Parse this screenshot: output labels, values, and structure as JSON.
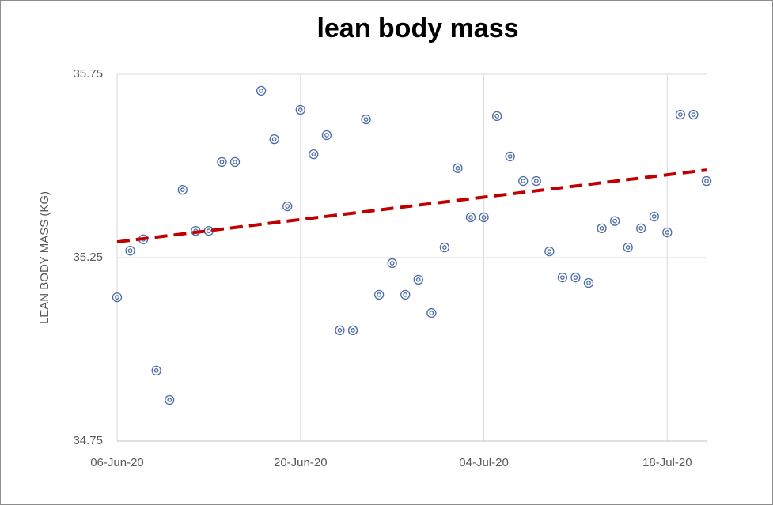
{
  "chart_data": {
    "type": "scatter",
    "title": "lean body mass",
    "y_label": "LEAN BODY MASS (KG)",
    "x": [
      "2020-06-06",
      "2020-06-07",
      "2020-06-08",
      "2020-06-09",
      "2020-06-10",
      "2020-06-11",
      "2020-06-12",
      "2020-06-13",
      "2020-06-14",
      "2020-06-15",
      "2020-06-17",
      "2020-06-18",
      "2020-06-19",
      "2020-06-20",
      "2020-06-21",
      "2020-06-22",
      "2020-06-23",
      "2020-06-24",
      "2020-06-25",
      "2020-06-26",
      "2020-06-27",
      "2020-06-28",
      "2020-06-29",
      "2020-06-30",
      "2020-07-01",
      "2020-07-02",
      "2020-07-03",
      "2020-07-04",
      "2020-07-05",
      "2020-07-06",
      "2020-07-07",
      "2020-07-08",
      "2020-07-09",
      "2020-07-10",
      "2020-07-11",
      "2020-07-12",
      "2020-07-13",
      "2020-07-14",
      "2020-07-15",
      "2020-07-16",
      "2020-07-17",
      "2020-07-18",
      "2020-07-19",
      "2020-07-20",
      "2020-07-21"
    ],
    "values": [
      35.142,
      35.269,
      35.3,
      34.942,
      34.862,
      35.435,
      35.323,
      35.323,
      35.511,
      35.511,
      35.705,
      35.573,
      35.39,
      35.653,
      35.532,
      35.584,
      35.052,
      35.052,
      35.627,
      35.149,
      35.235,
      35.149,
      35.19,
      35.099,
      35.278,
      35.494,
      35.36,
      35.36,
      35.636,
      35.526,
      35.459,
      35.459,
      35.267,
      35.196,
      35.196,
      35.181,
      35.33,
      35.35,
      35.278,
      35.33,
      35.362,
      35.319,
      35.64,
      35.64,
      35.459
    ],
    "color": "#4a6aa8",
    "trendline": {
      "x": [
        "2020-06-06",
        "2020-07-21"
      ],
      "values": [
        35.293,
        35.489
      ],
      "color": "#c00000"
    },
    "xlim": [
      "2020-06-06",
      "2020-07-21"
    ],
    "xticks": [
      {
        "value": "2020-06-06",
        "label": "06-Jun-20"
      },
      {
        "value": "2020-06-20",
        "label": "20-Jun-20"
      },
      {
        "value": "2020-07-04",
        "label": "04-Jul-20"
      },
      {
        "value": "2020-07-18",
        "label": "18-Jul-20"
      }
    ],
    "ylim": [
      34.75,
      35.75
    ],
    "yticks": [
      34.75,
      35.25,
      35.75
    ],
    "grid": true
  }
}
